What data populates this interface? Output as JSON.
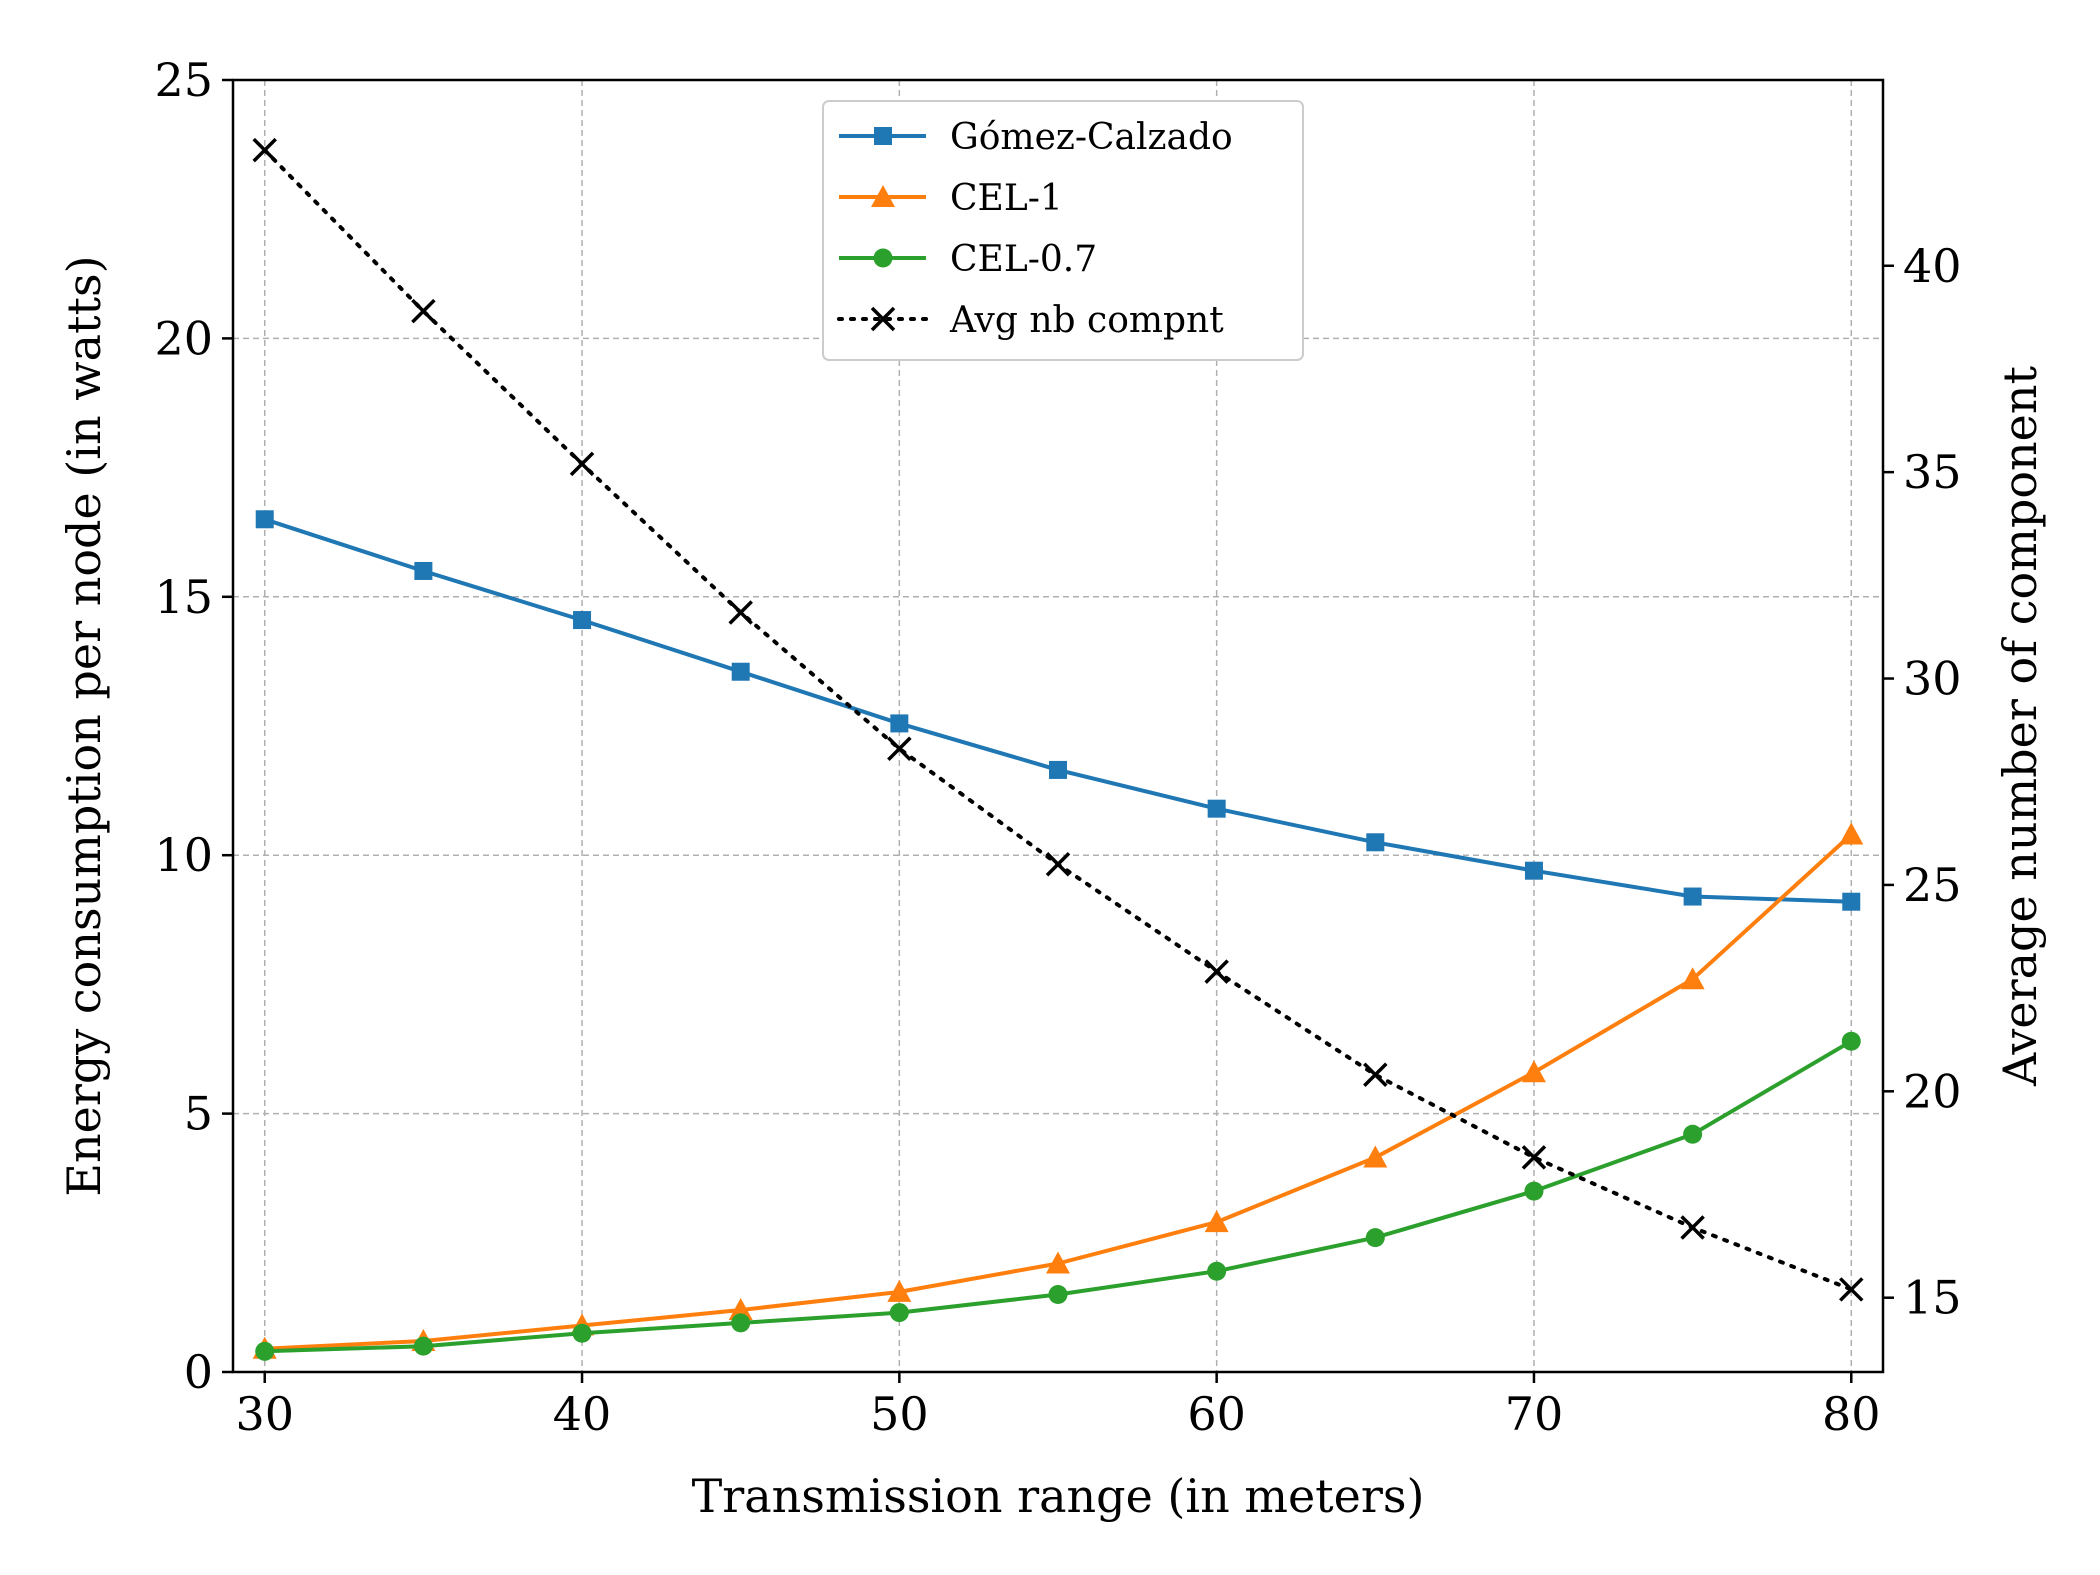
{
  "chart_data": {
    "type": "line",
    "title": "",
    "xlabel": "Transmission range (in meters)",
    "ylabel": "Energy consumption per node (in watts)",
    "y2label": "Average number of component",
    "x": [
      30,
      35,
      40,
      45,
      50,
      55,
      60,
      65,
      70,
      75,
      80
    ],
    "xlim": [
      29,
      81
    ],
    "ylim": [
      0,
      25
    ],
    "y2lim": [
      13.2,
      44.5
    ],
    "grid": true,
    "legend_position": "top-center",
    "x_ticks": [
      30,
      40,
      50,
      60,
      70,
      80
    ],
    "y_ticks": [
      0,
      5,
      10,
      15,
      20,
      25
    ],
    "y2_ticks": [
      15,
      20,
      25,
      30,
      35,
      40
    ],
    "series": [
      {
        "name": "Gómez-Calzado",
        "axis": "left",
        "color": "#1f77b4",
        "marker": "square",
        "linestyle": "solid",
        "values": [
          16.5,
          15.5,
          14.55,
          13.55,
          12.55,
          11.65,
          10.9,
          10.25,
          9.7,
          9.2,
          9.1
        ]
      },
      {
        "name": "CEL-1",
        "axis": "left",
        "color": "#ff7f0e",
        "marker": "triangle",
        "linestyle": "solid",
        "values": [
          0.45,
          0.6,
          0.9,
          1.2,
          1.55,
          2.1,
          2.9,
          4.15,
          5.8,
          7.6,
          10.4
        ]
      },
      {
        "name": "CEL-0.7",
        "axis": "left",
        "color": "#2ca02c",
        "marker": "circle",
        "linestyle": "solid",
        "values": [
          0.4,
          0.5,
          0.75,
          0.95,
          1.15,
          1.5,
          1.95,
          2.6,
          3.5,
          4.6,
          6.4
        ]
      },
      {
        "name": "Avg nb compnt",
        "axis": "right",
        "color": "#000000",
        "marker": "x",
        "linestyle": "dotted",
        "values": [
          42.8,
          38.9,
          35.2,
          31.6,
          28.3,
          25.5,
          22.9,
          20.4,
          18.4,
          16.7,
          15.2
        ]
      }
    ]
  }
}
